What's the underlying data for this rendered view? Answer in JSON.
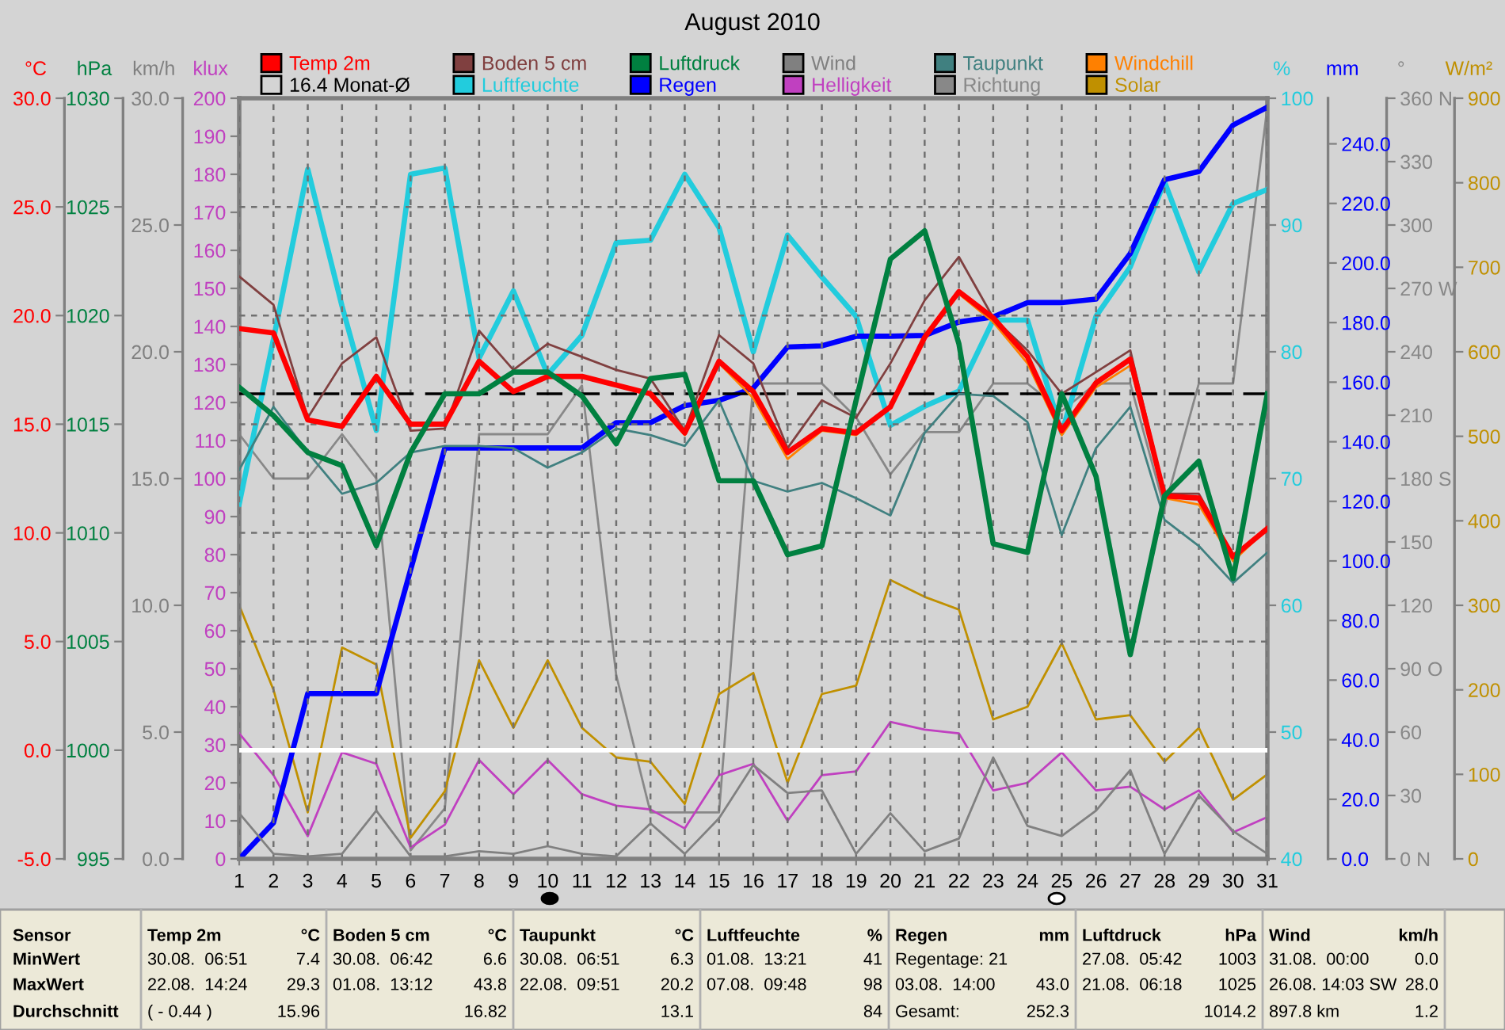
{
  "chart_data": [
    {
      "type": "line",
      "title": "August 2010",
      "x": [
        1,
        2,
        3,
        4,
        5,
        6,
        7,
        8,
        9,
        10,
        11,
        12,
        13,
        14,
        15,
        16,
        17,
        18,
        19,
        20,
        21,
        22,
        23,
        24,
        25,
        26,
        27,
        28,
        29,
        30,
        31
      ],
      "xlim": [
        1,
        31
      ],
      "xticks": [
        1,
        2,
        3,
        4,
        5,
        6,
        7,
        8,
        9,
        10,
        11,
        12,
        13,
        14,
        15,
        16,
        17,
        18,
        19,
        20,
        21,
        22,
        23,
        24,
        25,
        26,
        27,
        28,
        29,
        30,
        31
      ],
      "ylabel": "°C",
      "ylim": [
        -5,
        30
      ],
      "yticks": [
        {
          "value": -5,
          "label": "-5.0"
        },
        {
          "value": 0,
          "label": "0.0"
        },
        {
          "value": 5,
          "label": "5.0"
        },
        {
          "value": 10,
          "label": "10.0"
        },
        {
          "value": 15,
          "label": "15.0"
        },
        {
          "value": 20,
          "label": "20.0"
        },
        {
          "value": 25,
          "label": "25.0"
        },
        {
          "value": 30,
          "label": "30.0"
        }
      ],
      "y2label": "hPa",
      "y2lim": [
        995,
        1030
      ],
      "y2ticks": [
        995,
        1000,
        1005,
        1010,
        1015,
        1020,
        1025,
        1030
      ],
      "y3label": "km/h",
      "y3lim": [
        0,
        30
      ],
      "y3ticks": [
        {
          "value": 0,
          "label": "0.0"
        },
        {
          "value": 5,
          "label": "5.0"
        },
        {
          "value": 10,
          "label": "10.0"
        },
        {
          "value": 15,
          "label": "15.0"
        },
        {
          "value": 20,
          "label": "20.0"
        },
        {
          "value": 25,
          "label": "25.0"
        },
        {
          "value": 30,
          "label": "30.0"
        }
      ],
      "grid": true,
      "legend": "top",
      "marker": "none",
      "line_style": "solid",
      "series": [
        {
          "name": "Temp 2m",
          "color": "#ff0000",
          "values": [
            19.4,
            19.2,
            15.2,
            14.9,
            17.2,
            15.0,
            15.0,
            17.9,
            16.5,
            17.2,
            17.2,
            16.8,
            16.4,
            14.6,
            17.9,
            16.5,
            13.7,
            14.8,
            14.6,
            15.8,
            19.0,
            21.1,
            19.9,
            18.1,
            14.7,
            16.9,
            18.0,
            11.7,
            11.6,
            8.9,
            10.2
          ]
        },
        {
          "name": "Boden 5 cm",
          "color": "#804040",
          "values": [
            21.8,
            20.5,
            15.3,
            17.8,
            19.0,
            14.7,
            14.8,
            19.3,
            17.5,
            18.7,
            18.1,
            17.5,
            17.1,
            14.7,
            19.1,
            17.8,
            13.9,
            16.1,
            15.3,
            17.8,
            20.7,
            22.7,
            19.9,
            18.4,
            16.4,
            17.4,
            18.4,
            11.8,
            11.8,
            9.0,
            10.2
          ]
        },
        {
          "name": "Luftdruck",
          "color": "#008040",
          "axis": "y2",
          "values": [
            1016.7,
            1015.4,
            1013.7,
            1013.1,
            1009.4,
            1013.7,
            1016.4,
            1016.4,
            1017.4,
            1017.4,
            1016.3,
            1014.1,
            1017.1,
            1017.3,
            1012.4,
            1012.4,
            1009.0,
            1009.4,
            1016.1,
            1022.6,
            1023.9,
            1018.7,
            1009.5,
            1009.1,
            1016.4,
            1012.6,
            1004.4,
            1011.7,
            1013.3,
            1007.9,
            1016.4
          ]
        },
        {
          "name": "Wind",
          "color": "#808080",
          "axis": "y3",
          "values": [
            1.8,
            0.2,
            0.1,
            0.2,
            1.9,
            0.1,
            0.1,
            0.3,
            0.2,
            0.5,
            0.2,
            0.1,
            1.4,
            0.2,
            1.6,
            3.7,
            2.6,
            2.7,
            0.2,
            1.8,
            0.3,
            0.8,
            4.0,
            1.3,
            0.9,
            1.9,
            3.5,
            0.2,
            2.5,
            1.1,
            0.2
          ]
        },
        {
          "name": "Taupunkt",
          "color": "#408080",
          "values": [
            12.9,
            15.8,
            13.7,
            11.8,
            12.3,
            13.7,
            14.0,
            14.0,
            13.9,
            13.0,
            13.7,
            14.8,
            14.5,
            14.0,
            16.1,
            12.4,
            11.9,
            12.3,
            11.6,
            10.8,
            14.6,
            16.4,
            16.3,
            15.1,
            9.9,
            13.9,
            15.8,
            10.6,
            9.4,
            7.7,
            9.1
          ]
        },
        {
          "name": "Windchill",
          "color": "#ff8000",
          "values": [
            null,
            null,
            null,
            null,
            null,
            null,
            null,
            null,
            null,
            null,
            null,
            null,
            16.3,
            14.5,
            17.8,
            16.2,
            13.4,
            14.7,
            14.5,
            15.8,
            19.0,
            21.0,
            19.7,
            17.8,
            14.5,
            16.7,
            17.7,
            11.6,
            11.3,
            8.7,
            10.2
          ]
        }
      ],
      "ref_lines": [
        {
          "axis": "y",
          "value": 16.4,
          "label": "16.4 Monat-Ø",
          "color": "#000000",
          "line_style": "dashed"
        },
        {
          "axis": "y",
          "value": 0,
          "color": "#ffffff",
          "line_style": "solid"
        }
      ],
      "annotations": [
        "Sensor",
        "Temp 2m",
        "°C",
        "Boden 5 cm",
        "°C",
        "Taupunkt",
        "°C",
        "Luftfeuchte",
        "%",
        "Regen",
        "mm",
        "Luftdruck",
        "hPa",
        "Wind",
        "km/h",
        "MinWert",
        "30.08.  06:51",
        "7.4",
        "30.08.  06:42",
        "6.6",
        "30.08.  06:51",
        "6.3",
        "01.08.  13:21",
        "41",
        "Regentage: 21",
        null,
        "27.08.  05:42",
        "1003",
        "31.08.  00:00",
        "0.0",
        "MaxWert",
        "22.08.  14:24",
        "29.3",
        "01.08.  13:12",
        "43.8",
        "22.08.  09:51",
        "20.2",
        "07.08.  09:48",
        "98",
        "03.08.  14:00",
        "43.0",
        "21.08.  06:18",
        "1025",
        "26.08. 14:03 SW",
        "28.0",
        "Durchschnitt",
        "( - 0.44 )",
        "15.96",
        null,
        "16.82",
        null,
        "13.1",
        null,
        "84",
        "Gesamt:",
        "252.3",
        null,
        "1014.2",
        "897.8 km",
        "1.2"
      ]
    },
    {
      "type": "line",
      "tick_labels": "y",
      "legend": "top",
      "marker": "none",
      "line_style": "solid",
      "x": [
        1,
        2,
        3,
        4,
        5,
        6,
        7,
        8,
        9,
        10,
        11,
        12,
        13,
        14,
        15,
        16,
        17,
        18,
        19,
        20,
        21,
        22,
        23,
        24,
        25,
        26,
        27,
        28,
        29,
        30,
        31
      ],
      "xlim": [
        1,
        31
      ],
      "ylabel": "klux",
      "ylim": [
        0,
        200
      ],
      "yticks": [
        0,
        10,
        20,
        30,
        40,
        50,
        60,
        70,
        80,
        90,
        100,
        110,
        120,
        130,
        140,
        150,
        160,
        170,
        180,
        190,
        200
      ],
      "y2label": "%",
      "y2lim": [
        40,
        100
      ],
      "y2ticks": [
        40,
        50,
        60,
        70,
        80,
        90,
        100
      ],
      "y3label": "mm",
      "y3lim": [
        0,
        255.3
      ],
      "y3ticks": [
        {
          "value": 0,
          "label": "0.0"
        },
        {
          "value": 20,
          "label": "20.0"
        },
        {
          "value": 40,
          "label": "40.0"
        },
        {
          "value": 60,
          "label": "60.0"
        },
        {
          "value": 80,
          "label": "80.0"
        },
        {
          "value": 100,
          "label": "100.0"
        },
        {
          "value": 120,
          "label": "120.0"
        },
        {
          "value": 140,
          "label": "140.0"
        },
        {
          "value": 160,
          "label": "160.0"
        },
        {
          "value": 180,
          "label": "180.0"
        },
        {
          "value": 200,
          "label": "200.0"
        },
        {
          "value": 220,
          "label": "220.0"
        },
        {
          "value": 240,
          "label": "240.0"
        }
      ],
      "series": [
        {
          "name": "Luftfeuchte",
          "color": "#22ccdd",
          "axis": "y2",
          "values": [
            68,
            81,
            94.4,
            83.6,
            73.8,
            94,
            94.5,
            79.5,
            84.8,
            78.2,
            81.3,
            88.6,
            88.8,
            94,
            89.8,
            80,
            89.2,
            85.9,
            82.8,
            74.2,
            75.7,
            76.9,
            82.5,
            82.5,
            73.6,
            82.8,
            86.7,
            93.4,
            86.3,
            91.7,
            92.8
          ]
        },
        {
          "name": "Regen",
          "color": "#0000ff",
          "axis": "y3",
          "values": [
            0,
            12.1,
            55.5,
            55.5,
            55.5,
            97,
            137.9,
            137.9,
            137.9,
            137.9,
            137.9,
            146.4,
            146.4,
            152.1,
            153.9,
            158.0,
            171.8,
            172.2,
            175.4,
            175.4,
            175.7,
            180.2,
            181.9,
            186.7,
            186.7,
            187.9,
            203.2,
            228.0,
            230.7,
            246.3,
            252.3
          ]
        },
        {
          "name": "Helligkeit",
          "color": "#c040c0",
          "values": [
            33,
            22,
            6,
            28,
            25,
            3,
            9,
            26,
            17,
            26,
            17,
            14,
            13,
            8,
            22,
            25,
            10,
            22,
            23,
            36,
            34,
            33,
            18,
            20,
            28,
            18,
            19,
            13,
            18,
            7,
            11
          ]
        }
      ]
    },
    {
      "type": "line",
      "tick_labels": "y",
      "legend": "top",
      "marker": "none",
      "line_style": "solid",
      "x": [
        1,
        2,
        3,
        4,
        5,
        6,
        7,
        8,
        9,
        10,
        11,
        12,
        13,
        14,
        15,
        16,
        17,
        18,
        19,
        20,
        21,
        22,
        23,
        24,
        25,
        26,
        27,
        28,
        29,
        30,
        31
      ],
      "xlim": [
        1,
        31
      ],
      "ylabel": "°",
      "ylim": [
        0,
        360
      ],
      "yticks": [
        {
          "value": 0,
          "label": "0 N"
        },
        30,
        60,
        {
          "value": 90,
          "label": "90 O"
        },
        120,
        150,
        {
          "value": 180,
          "label": "180 S"
        },
        210,
        240,
        {
          "value": 270,
          "label": "270 W"
        },
        300,
        330,
        {
          "value": 360,
          "label": "360 N"
        }
      ],
      "y2label": "W/m²",
      "y2lim": [
        0,
        900
      ],
      "y2ticks": [
        0,
        100,
        200,
        300,
        400,
        500,
        600,
        700,
        800,
        900
      ],
      "series": [
        {
          "name": "Richtung",
          "color": "#888888",
          "values": [
            201,
            180,
            180,
            201,
            180,
            4,
            24,
            201,
            201,
            201,
            224,
            87,
            22,
            22,
            22,
            225,
            225,
            225,
            209,
            182,
            202,
            202,
            225,
            225,
            212,
            225,
            225,
            166,
            225,
            225,
            356
          ]
        },
        {
          "name": "Solar",
          "color": "#c09000",
          "axis": "y2",
          "values": [
            300,
            200,
            55,
            250,
            230,
            25,
            80,
            235,
            155,
            235,
            155,
            120,
            115,
            65,
            195,
            220,
            90,
            195,
            205,
            330,
            310,
            295,
            165,
            180,
            255,
            165,
            170,
            115,
            155,
            70,
            100
          ]
        }
      ]
    }
  ]
}
